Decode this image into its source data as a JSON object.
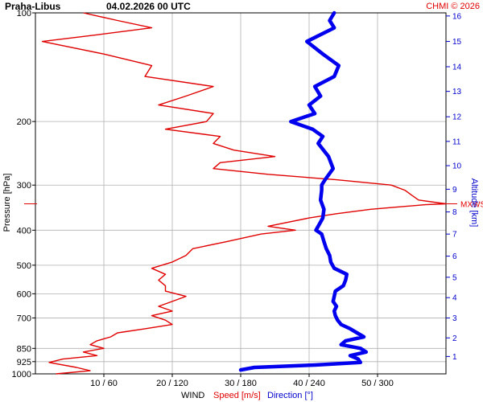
{
  "chart_data": {
    "type": "line",
    "title": "Praha-Libus",
    "datetime": "04.02.2026 00 UTC",
    "copyright": "CHMI © 2026",
    "ylabel": "Pressure [hPa]",
    "y2label": "Altitude [km]",
    "xlabel_main": "WIND",
    "xlabel_speed": "Speed [m/s]",
    "xlabel_direction": "Direction [°]",
    "annotation": "MXWS",
    "annotation_pressure": 338,
    "y_scale": "log",
    "ylim": [
      1000,
      100
    ],
    "pressure_ticks": [
      "100",
      "200",
      "300",
      "400",
      "500",
      "600",
      "700",
      "850",
      "925",
      "1000"
    ],
    "pressure_values": [
      100,
      200,
      300,
      400,
      500,
      600,
      700,
      850,
      925,
      1000
    ],
    "x_ticks": [
      "10 / 60",
      "20 / 120",
      "30 / 180",
      "40 / 240",
      "50 / 300"
    ],
    "x_speed_values": [
      10,
      20,
      30,
      40,
      50
    ],
    "speed_xlim": [
      0,
      60
    ],
    "direction_xlim": [
      0,
      360
    ],
    "altitude_ticks": [
      {
        "label": "1",
        "p": 895
      },
      {
        "label": "2",
        "p": 795
      },
      {
        "label": "3",
        "p": 700
      },
      {
        "label": "4",
        "p": 615
      },
      {
        "label": "5",
        "p": 540
      },
      {
        "label": "6",
        "p": 472
      },
      {
        "label": "7",
        "p": 410
      },
      {
        "label": "8",
        "p": 356
      },
      {
        "label": "9",
        "p": 308
      },
      {
        "label": "10",
        "p": 265
      },
      {
        "label": "11",
        "p": 227
      },
      {
        "label": "12",
        "p": 194
      },
      {
        "label": "13",
        "p": 165
      },
      {
        "label": "14",
        "p": 141
      },
      {
        "label": "15",
        "p": 120
      },
      {
        "label": "16",
        "p": 102
      }
    ],
    "series": [
      {
        "name": "Speed [m/s]",
        "color": "#e00000",
        "unit": "m/s",
        "points": [
          [
            1000,
            3
          ],
          [
            980,
            8
          ],
          [
            960,
            6
          ],
          [
            930,
            2
          ],
          [
            910,
            4
          ],
          [
            890,
            9
          ],
          [
            870,
            7
          ],
          [
            850,
            10
          ],
          [
            830,
            8
          ],
          [
            810,
            9
          ],
          [
            790,
            11
          ],
          [
            770,
            12
          ],
          [
            750,
            16
          ],
          [
            730,
            20
          ],
          [
            710,
            19
          ],
          [
            690,
            17
          ],
          [
            670,
            20
          ],
          [
            650,
            18
          ],
          [
            630,
            20
          ],
          [
            610,
            22
          ],
          [
            590,
            19
          ],
          [
            570,
            19
          ],
          [
            550,
            18
          ],
          [
            530,
            19
          ],
          [
            510,
            17
          ],
          [
            490,
            20
          ],
          [
            470,
            22
          ],
          [
            450,
            23
          ],
          [
            430,
            28
          ],
          [
            410,
            33
          ],
          [
            400,
            38
          ],
          [
            390,
            34
          ],
          [
            370,
            40
          ],
          [
            360,
            44
          ],
          [
            350,
            49
          ],
          [
            340,
            57
          ],
          [
            338,
            60
          ],
          [
            330,
            56
          ],
          [
            320,
            55
          ],
          [
            310,
            54
          ],
          [
            300,
            52
          ],
          [
            290,
            44
          ],
          [
            280,
            34
          ],
          [
            270,
            26
          ],
          [
            260,
            27
          ],
          [
            250,
            35
          ],
          [
            240,
            29
          ],
          [
            230,
            26
          ],
          [
            220,
            27
          ],
          [
            210,
            19
          ],
          [
            200,
            25
          ],
          [
            190,
            26
          ],
          [
            180,
            18
          ],
          [
            170,
            22
          ],
          [
            160,
            26
          ],
          [
            150,
            16
          ],
          [
            140,
            17
          ],
          [
            130,
            10
          ],
          [
            120,
            1
          ],
          [
            115,
            9
          ],
          [
            110,
            17
          ],
          [
            105,
            12
          ],
          [
            100,
            7
          ]
        ]
      },
      {
        "name": "Direction [°]",
        "color": "#0000ee",
        "unit": "deg",
        "points": [
          [
            975,
            180
          ],
          [
            960,
            192
          ],
          [
            945,
            245
          ],
          [
            930,
            285
          ],
          [
            910,
            283
          ],
          [
            890,
            276
          ],
          [
            870,
            290
          ],
          [
            850,
            285
          ],
          [
            830,
            268
          ],
          [
            810,
            272
          ],
          [
            790,
            288
          ],
          [
            770,
            282
          ],
          [
            750,
            276
          ],
          [
            730,
            268
          ],
          [
            710,
            265
          ],
          [
            690,
            263
          ],
          [
            670,
            262
          ],
          [
            650,
            264
          ],
          [
            630,
            261
          ],
          [
            610,
            262
          ],
          [
            590,
            263
          ],
          [
            570,
            270
          ],
          [
            550,
            272
          ],
          [
            530,
            273
          ],
          [
            510,
            262
          ],
          [
            490,
            259
          ],
          [
            470,
            258
          ],
          [
            450,
            255
          ],
          [
            430,
            253
          ],
          [
            410,
            251
          ],
          [
            400,
            246
          ],
          [
            390,
            248
          ],
          [
            370,
            252
          ],
          [
            350,
            253
          ],
          [
            330,
            250
          ],
          [
            310,
            251
          ],
          [
            300,
            251
          ],
          [
            290,
            254
          ],
          [
            270,
            261
          ],
          [
            250,
            257
          ],
          [
            230,
            248
          ],
          [
            220,
            252
          ],
          [
            210,
            243
          ],
          [
            200,
            224
          ],
          [
            190,
            245
          ],
          [
            180,
            240
          ],
          [
            170,
            250
          ],
          [
            160,
            245
          ],
          [
            150,
            262
          ],
          [
            140,
            266
          ],
          [
            130,
            252
          ],
          [
            120,
            238
          ],
          [
            110,
            262
          ],
          [
            105,
            258
          ],
          [
            100,
            262
          ]
        ]
      }
    ]
  }
}
